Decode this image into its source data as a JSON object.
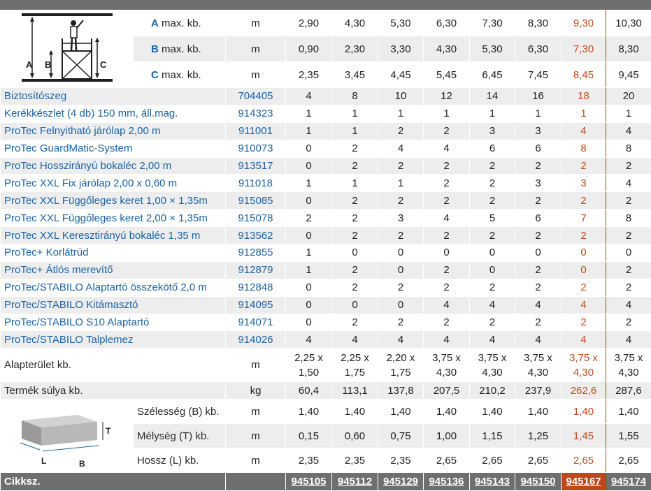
{
  "columns_count": 8,
  "highlight_column_index": 6,
  "height_rows": [
    {
      "letter": "A",
      "label": "max. kb.",
      "unit": "m",
      "values": [
        "2,90",
        "4,30",
        "5,30",
        "6,30",
        "7,30",
        "8,30",
        "9,30",
        "10,30"
      ]
    },
    {
      "letter": "B",
      "label": "max. kb.",
      "unit": "m",
      "values": [
        "0,90",
        "2,30",
        "3,30",
        "4,30",
        "5,30",
        "6,30",
        "7,30",
        "8,30"
      ]
    },
    {
      "letter": "C",
      "label": "max. kb.",
      "unit": "m",
      "values": [
        "2,35",
        "3,45",
        "4,45",
        "5,45",
        "6,45",
        "7,45",
        "8,45",
        "9,45"
      ]
    }
  ],
  "scaffold_image": {
    "labels": [
      "A",
      "B",
      "C"
    ]
  },
  "components": [
    {
      "name": "Biztosítószeg",
      "code": "704405",
      "values": [
        "4",
        "8",
        "10",
        "12",
        "14",
        "16",
        "18",
        "20"
      ]
    },
    {
      "name": "Kerékkészlet (4 db) 150 mm, áll.mag.",
      "code": "914323",
      "values": [
        "1",
        "1",
        "1",
        "1",
        "1",
        "1",
        "1",
        "1"
      ]
    },
    {
      "name": "ProTec Felnyitható járólap 2,00 m",
      "code": "911001",
      "values": [
        "1",
        "1",
        "2",
        "2",
        "3",
        "3",
        "4",
        "4"
      ]
    },
    {
      "name": "ProTec GuardMatic-System",
      "code": "910073",
      "values": [
        "0",
        "2",
        "4",
        "4",
        "6",
        "6",
        "8",
        "8"
      ]
    },
    {
      "name": "ProTec Hosszirányú bokaléc 2,00 m",
      "code": "913517",
      "values": [
        "0",
        "2",
        "2",
        "2",
        "2",
        "2",
        "2",
        "2"
      ]
    },
    {
      "name": "ProTec XXL Fix járólap 2,00 x 0,60 m",
      "code": "911018",
      "values": [
        "1",
        "1",
        "1",
        "2",
        "2",
        "3",
        "3",
        "4"
      ]
    },
    {
      "name": "ProTec XXL Függőleges keret 1,00 × 1,35m",
      "code": "915085",
      "values": [
        "0",
        "2",
        "2",
        "2",
        "2",
        "2",
        "2",
        "2"
      ]
    },
    {
      "name": "ProTec XXL Függőleges keret 2,00 × 1,35m",
      "code": "915078",
      "values": [
        "2",
        "2",
        "3",
        "4",
        "5",
        "6",
        "7",
        "8"
      ]
    },
    {
      "name": "ProTec XXL Keresztirányú bokaléc 1,35 m",
      "code": "913562",
      "values": [
        "0",
        "2",
        "2",
        "2",
        "2",
        "2",
        "2",
        "2"
      ]
    },
    {
      "name": "ProTec+ Korlátrúd",
      "code": "912855",
      "values": [
        "1",
        "0",
        "0",
        "0",
        "0",
        "0",
        "0",
        "0"
      ]
    },
    {
      "name": "ProTec+ Átlós merevítő",
      "code": "912879",
      "values": [
        "1",
        "2",
        "0",
        "2",
        "0",
        "2",
        "0",
        "2"
      ]
    },
    {
      "name": "ProTec/STABILO Alaptartó összekötő 2,0 m",
      "code": "912848",
      "values": [
        "0",
        "2",
        "2",
        "2",
        "2",
        "2",
        "2",
        "2"
      ]
    },
    {
      "name": "ProTec/STABILO Kitámasztó",
      "code": "914095",
      "values": [
        "0",
        "0",
        "0",
        "4",
        "4",
        "4",
        "4",
        "4"
      ]
    },
    {
      "name": "ProTec/STABILO S10 Alaptartó",
      "code": "914071",
      "values": [
        "0",
        "2",
        "2",
        "2",
        "2",
        "2",
        "2",
        "2"
      ]
    },
    {
      "name": "ProTec/STABILO Talplemez",
      "code": "914026",
      "values": [
        "4",
        "4",
        "4",
        "4",
        "4",
        "4",
        "4",
        "4"
      ]
    }
  ],
  "footprint": {
    "label": "Alapterület kb.",
    "unit": "m",
    "values": [
      [
        "2,25 x",
        "1,50"
      ],
      [
        "2,25 x",
        "1,75"
      ],
      [
        "2,20 x",
        "1,75"
      ],
      [
        "3,75 x",
        "4,30"
      ],
      [
        "3,75 x",
        "4,30"
      ],
      [
        "3,75 x",
        "4,30"
      ],
      [
        "3,75 x",
        "4,30"
      ],
      [
        "3,75 x",
        "4,30"
      ]
    ]
  },
  "weight": {
    "label": "Termék súlya kb.",
    "unit": "kg",
    "values": [
      "60,4",
      "113,1",
      "137,8",
      "207,5",
      "210,2",
      "237,9",
      "262,6",
      "287,6"
    ]
  },
  "package_image": {
    "labels": [
      "T",
      "L",
      "B"
    ]
  },
  "package_rows": [
    {
      "label": "Szélesség (B) kb.",
      "unit": "m",
      "values": [
        "1,40",
        "1,40",
        "1,40",
        "1,40",
        "1,40",
        "1,40",
        "1,40",
        "1,40"
      ]
    },
    {
      "label": "Mélység (T) kb.",
      "unit": "m",
      "values": [
        "0,15",
        "0,60",
        "0,75",
        "1,00",
        "1,15",
        "1,25",
        "1,45",
        "1,55"
      ]
    },
    {
      "label": "Hossz (L) kb.",
      "unit": "m",
      "values": [
        "2,35",
        "2,35",
        "2,35",
        "2,65",
        "2,65",
        "2,65",
        "2,65",
        "2,65"
      ]
    }
  ],
  "article": {
    "label": "Cikksz.",
    "values": [
      "945105",
      "945112",
      "945129",
      "945136",
      "945143",
      "945150",
      "945167",
      "945174"
    ]
  },
  "colors": {
    "accent_blue": "#1a63a6",
    "highlight_orange": "#c24a1a",
    "header_gray": "#6f6f6f",
    "row_gray": "#ededed"
  }
}
